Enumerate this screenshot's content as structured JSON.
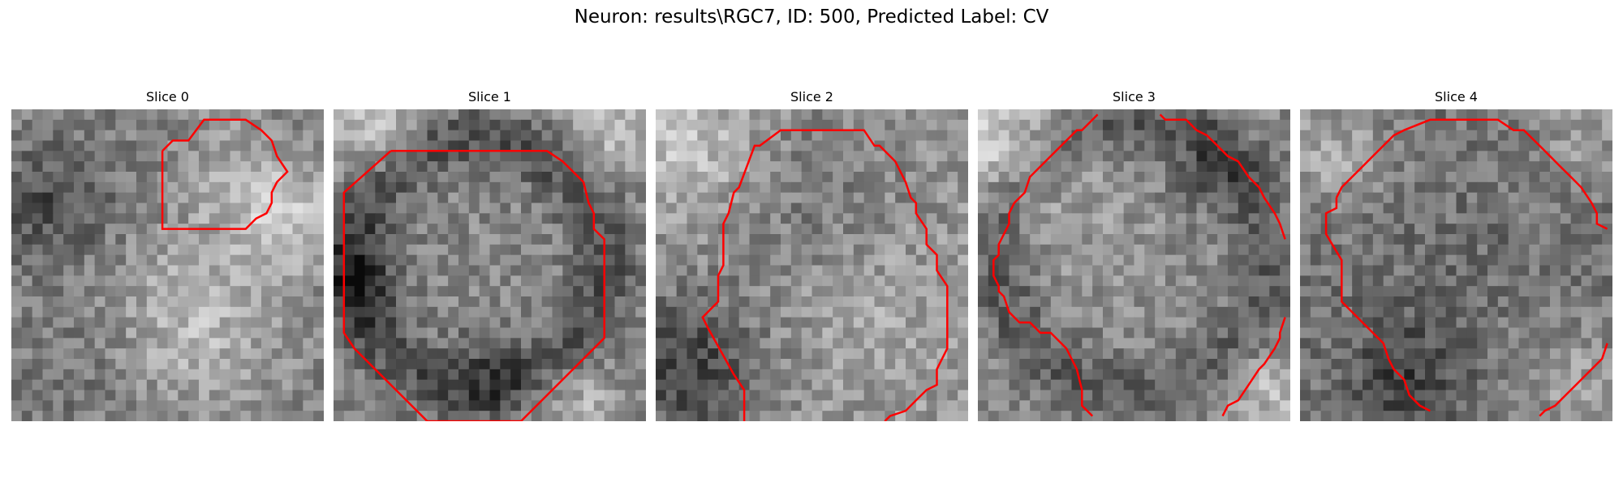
{
  "figure": {
    "title": "Neuron: results\\RGC7, ID: 500, Predicted Label: CV"
  },
  "panels": [
    {
      "title": "Slice 0",
      "pattern": "blob_dark_left_bright_right",
      "contour": "small_top_right"
    },
    {
      "title": "Slice 1",
      "pattern": "large_cell_dark_edges",
      "contour": "octagon_full"
    },
    {
      "title": "Slice 2",
      "pattern": "cell_dark_bottom_left",
      "contour": "right_arc"
    },
    {
      "title": "Slice 3",
      "pattern": "cell_dark_ring",
      "contour": "two_arcs"
    },
    {
      "title": "Slice 4",
      "pattern": "cell_dark_texture",
      "contour": "left_big_arc"
    }
  ],
  "colors": {
    "contour": "#ff0000",
    "background": "#ffffff"
  }
}
